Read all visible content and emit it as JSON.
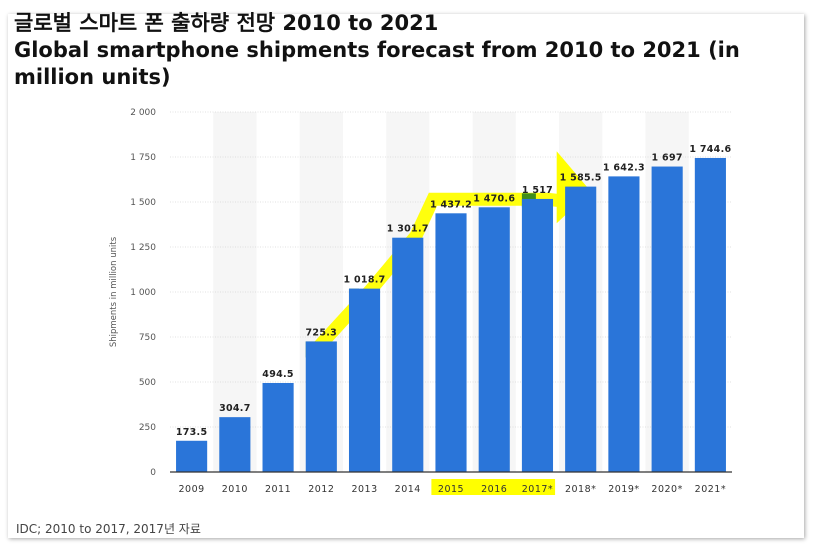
{
  "chart_data": {
    "type": "bar",
    "title_ko": "글로벌 스마트 폰 출하량 전망 2010 to 2021",
    "title": "Global smartphone shipments forecast from 2010 to 2021 (in million units)",
    "xlabel": "",
    "ylabel": "Shipments in million units",
    "categories": [
      "2009",
      "2010",
      "2011",
      "2012",
      "2013",
      "2014",
      "2015",
      "2016",
      "2017*",
      "2018*",
      "2019*",
      "2020*",
      "2021*"
    ],
    "values": [
      173.5,
      304.7,
      494.5,
      725.3,
      1018.7,
      1301.7,
      1437.2,
      1470.6,
      1517,
      1585.5,
      1642.3,
      1697,
      1744.6
    ],
    "value_labels": [
      "173.5",
      "304.7",
      "494.5",
      "725.3",
      "1 018.7",
      "1 301.7",
      "1 437.2",
      "1 470.6",
      "1 517",
      "1 585.5",
      "1 642.3",
      "1 697",
      "1 744.6"
    ],
    "yticks": [
      0,
      250,
      500,
      750,
      1000,
      1250,
      1500,
      1750,
      2000
    ],
    "ytick_labels": [
      "0",
      "250",
      "500",
      "750",
      "1 000",
      "1 250",
      "1 500",
      "1 750",
      "2 000"
    ],
    "ylim": [
      0,
      2000
    ],
    "grid": true,
    "bar_color": "#2a75d9",
    "highlight_color": "#ffff00",
    "highlighted_categories": [
      "2015",
      "2016",
      "2017*"
    ],
    "source": "IDC; 2010 to 2017, 2017년 자료"
  }
}
